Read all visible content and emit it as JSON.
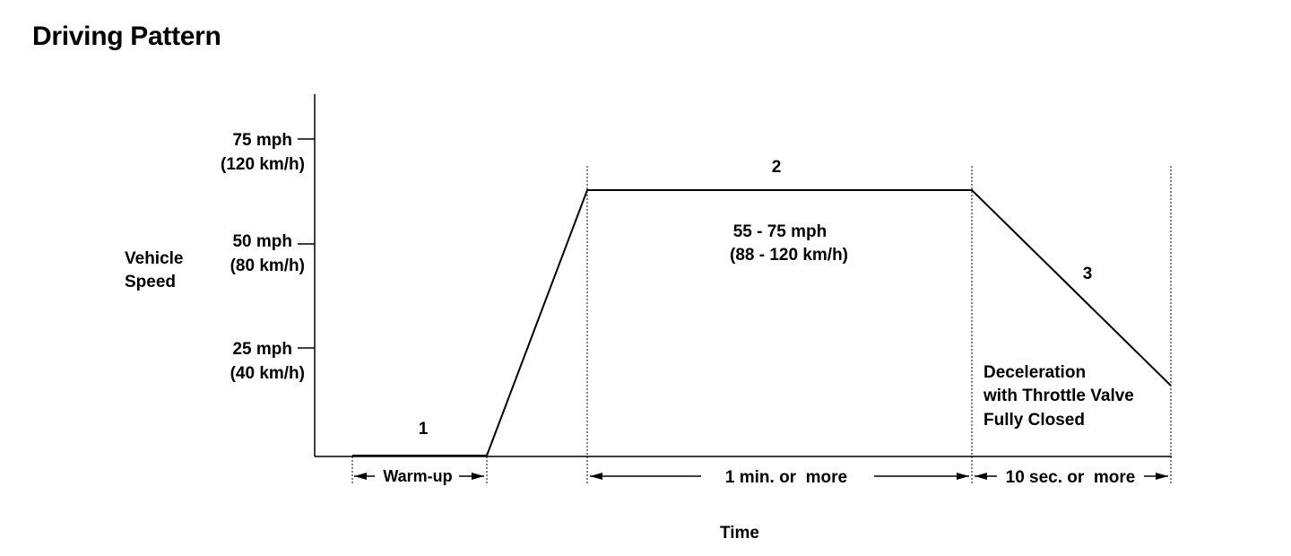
{
  "title": "Driving Pattern",
  "y_axis": {
    "label_lines": [
      "Vehicle",
      "Speed"
    ],
    "ticks": [
      {
        "mph": "75 mph",
        "kmh": "(120 km/h)"
      },
      {
        "mph": "50 mph",
        "kmh": "(80 km/h)"
      },
      {
        "mph": "25 mph",
        "kmh": "(40 km/h)"
      }
    ]
  },
  "x_axis": {
    "label": "Time"
  },
  "phases": [
    {
      "number": "1",
      "duration": "Warm-up"
    },
    {
      "number": "2",
      "speed_mph": "55 - 75 mph",
      "speed_kmh": "(88 - 120 km/h)",
      "duration": "1 min. or  more"
    },
    {
      "number": "3",
      "note_lines": [
        "Deceleration",
        "with Throttle Valve",
        "Fully Closed"
      ],
      "duration": "10 sec. or  more"
    }
  ]
}
